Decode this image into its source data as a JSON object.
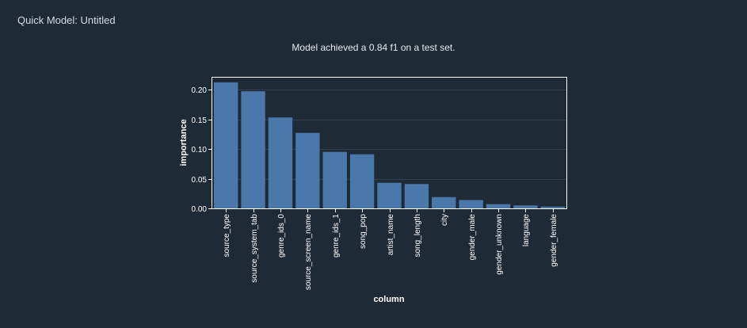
{
  "header": {
    "title": "Quick Model: Untitled"
  },
  "chart_data": {
    "type": "bar",
    "title": "Model achieved a 0.84 f1 on a test set.",
    "xlabel": "column",
    "ylabel": "importance",
    "categories": [
      "source_type",
      "source_system_tab",
      "genre_ids_0",
      "source_screen_name",
      "genre_ids_1",
      "song_pop",
      "artist_name",
      "song_length",
      "city",
      "gender_male",
      "gender_unknown",
      "language",
      "gender_female"
    ],
    "values": [
      0.212,
      0.197,
      0.153,
      0.127,
      0.095,
      0.091,
      0.043,
      0.041,
      0.019,
      0.014,
      0.007,
      0.005,
      0.003
    ],
    "ylim": [
      0,
      0.22
    ],
    "yticks": [
      "0.00",
      "0.05",
      "0.10",
      "0.15",
      "0.20"
    ],
    "grid": true,
    "colors": {
      "bar": "#4b78aa",
      "background": "#1f2a37",
      "grid": "#34404e",
      "axis": "#ffffff"
    }
  }
}
